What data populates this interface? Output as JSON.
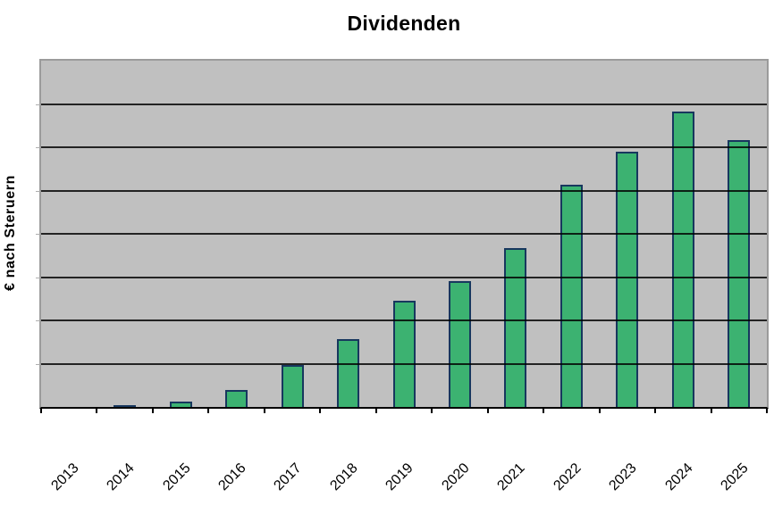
{
  "chart_data": {
    "type": "bar",
    "title": "Dividenden",
    "xlabel": "",
    "ylabel": "€ nach Steruern",
    "categories": [
      "2013",
      "2014",
      "2015",
      "2016",
      "2017",
      "2018",
      "2019",
      "2020",
      "2021",
      "2022",
      "2023",
      "2024",
      "2025"
    ],
    "series": [
      {
        "name": "Dividenden",
        "values": [
          0,
          0.04,
          0.12,
          0.4,
          0.97,
          1.57,
          2.45,
          2.91,
          3.67,
          5.13,
          5.9,
          6.82,
          6.16
        ]
      }
    ],
    "value_note": "y-axis shows no numeric tick labels; values estimated in gridline units from bottom axis",
    "ylim": [
      0,
      8
    ],
    "gridline_step": 1,
    "grid": true,
    "legend": false,
    "colors": {
      "bar_fill": "#3cb271",
      "bar_border": "#17375e",
      "plot_background": "#c0c0c0",
      "plot_border": "#9b9b9b",
      "gridline": "#000000",
      "axis": "#000000",
      "text": "#000000",
      "page_background": "#ffffff"
    }
  }
}
